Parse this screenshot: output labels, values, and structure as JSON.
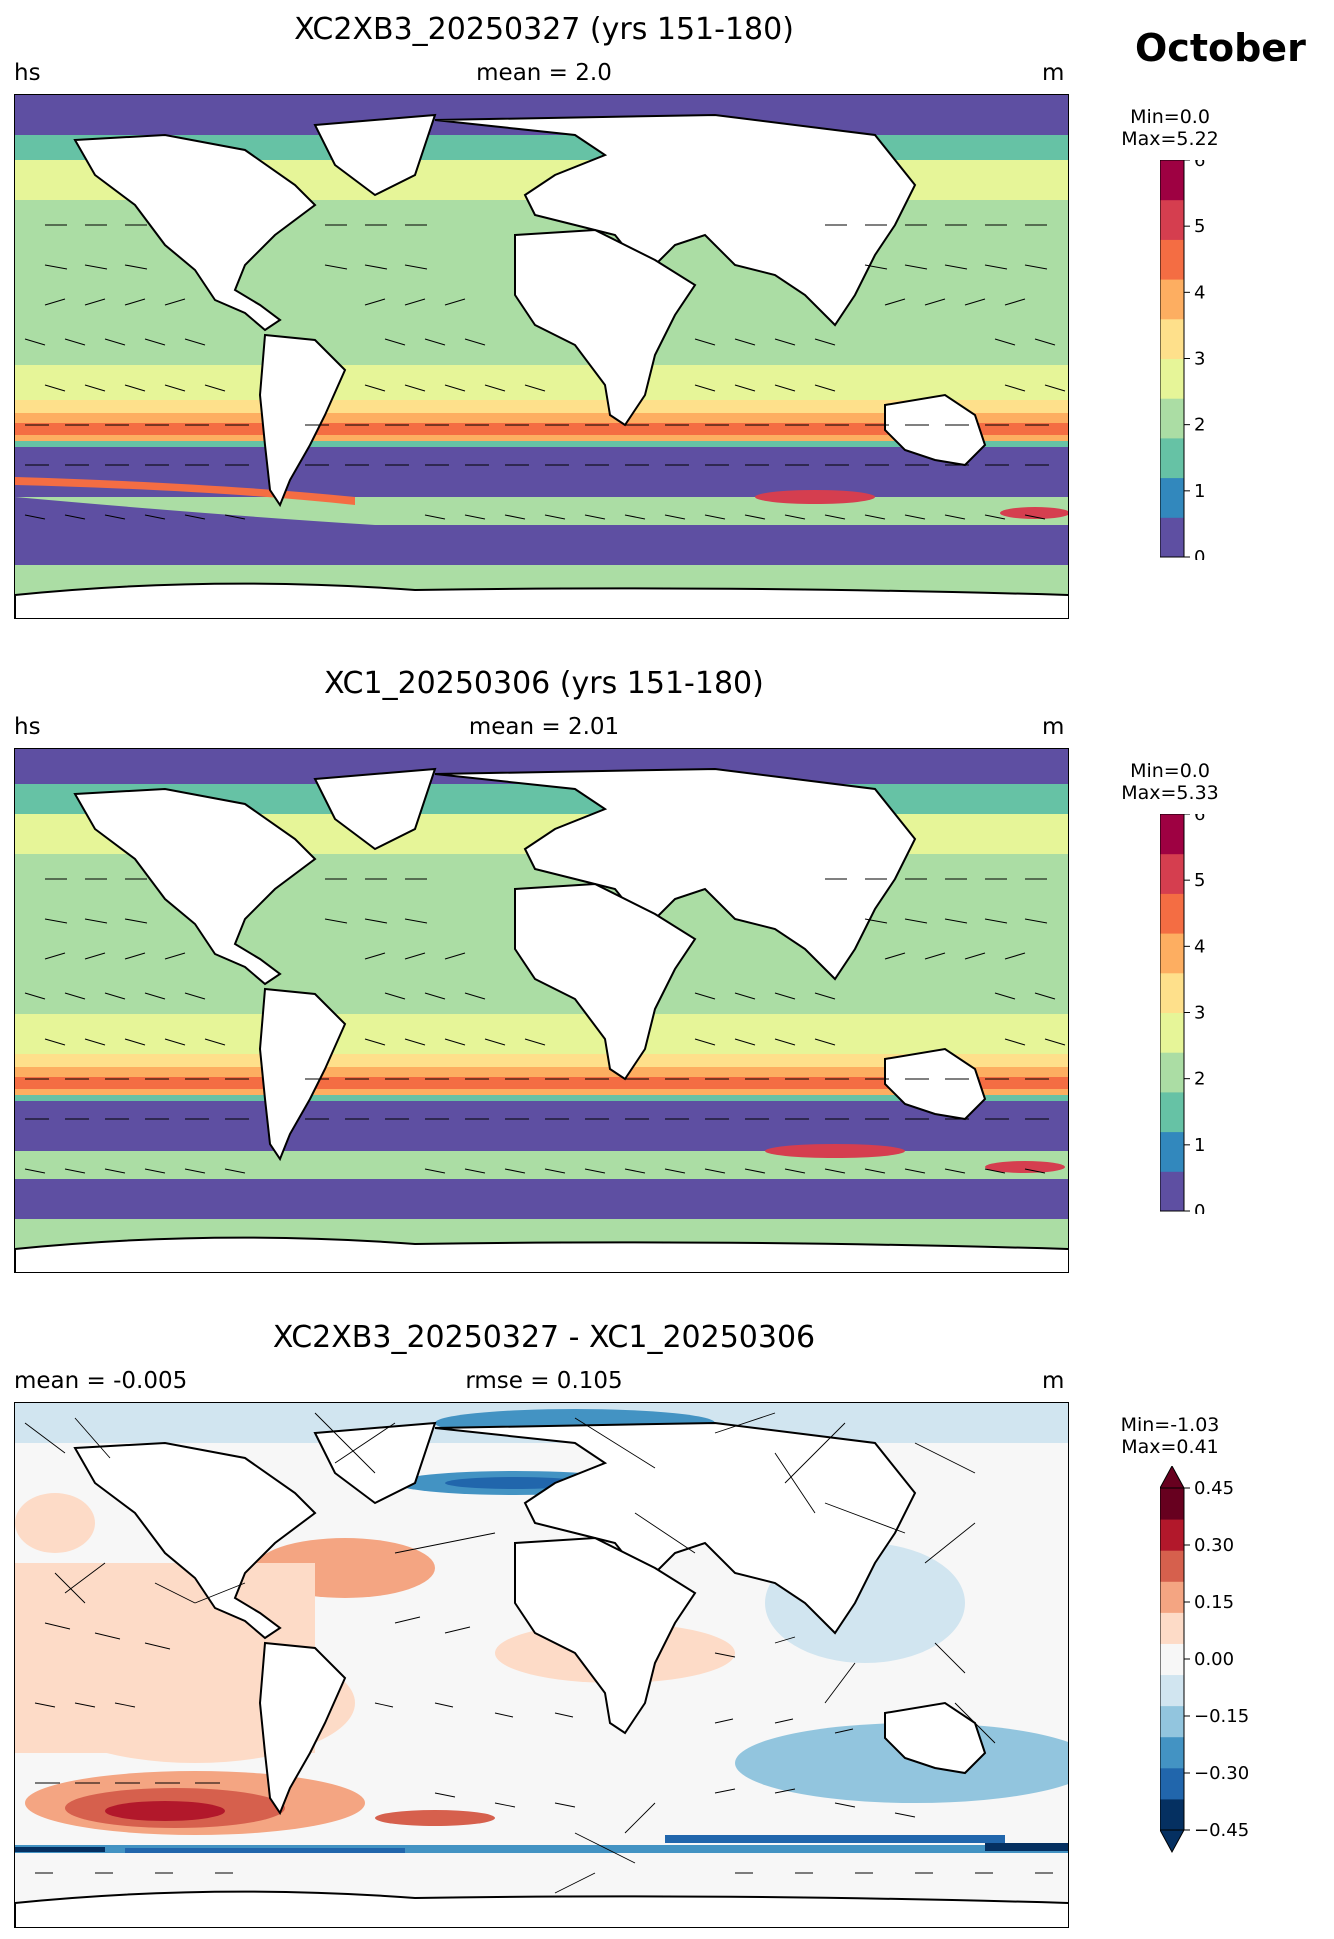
{
  "figure": {
    "month": "October"
  },
  "panels": [
    {
      "title": "XC2XB3_20250327 (yrs 151-180)",
      "left_label": "hs",
      "center_label": "mean = 2.0",
      "right_label": "m",
      "min_label": "Min=0.0",
      "max_label": "Max=5.22",
      "colorbar_ticks": [
        "0",
        "1",
        "2",
        "3",
        "4",
        "5",
        "6"
      ],
      "colormap": "Spectral_r"
    },
    {
      "title": "XC1_20250306 (yrs 151-180)",
      "left_label": "hs",
      "center_label": "mean = 2.01",
      "right_label": "m",
      "min_label": "Min=0.0",
      "max_label": "Max=5.33",
      "colorbar_ticks": [
        "0",
        "1",
        "2",
        "3",
        "4",
        "5",
        "6"
      ],
      "colormap": "Spectral_r"
    },
    {
      "title": "XC2XB3_20250327 - XC1_20250306",
      "left_label": "mean = -0.005",
      "center_label": "rmse = 0.105",
      "right_label": "m",
      "min_label": "Min=-1.03",
      "max_label": "Max=0.41",
      "colorbar_ticks": [
        "−0.45",
        "−0.30",
        "−0.15",
        "0.00",
        "0.15",
        "0.30",
        "0.45"
      ],
      "colormap": "RdBu_r"
    }
  ],
  "colors": {
    "spectral": [
      "#5e4fa2",
      "#3288bd",
      "#66c2a5",
      "#abdda4",
      "#e6f598",
      "#fee08b",
      "#fdae61",
      "#f46d43",
      "#d53e4f",
      "#9e0142"
    ],
    "rdbu": [
      "#053061",
      "#2166ac",
      "#4393c3",
      "#92c5de",
      "#d1e5f0",
      "#f7f7f7",
      "#fddbc7",
      "#f4a582",
      "#d6604d",
      "#b2182b",
      "#67001f"
    ],
    "land": "#ffffff",
    "coast": "#000000"
  }
}
